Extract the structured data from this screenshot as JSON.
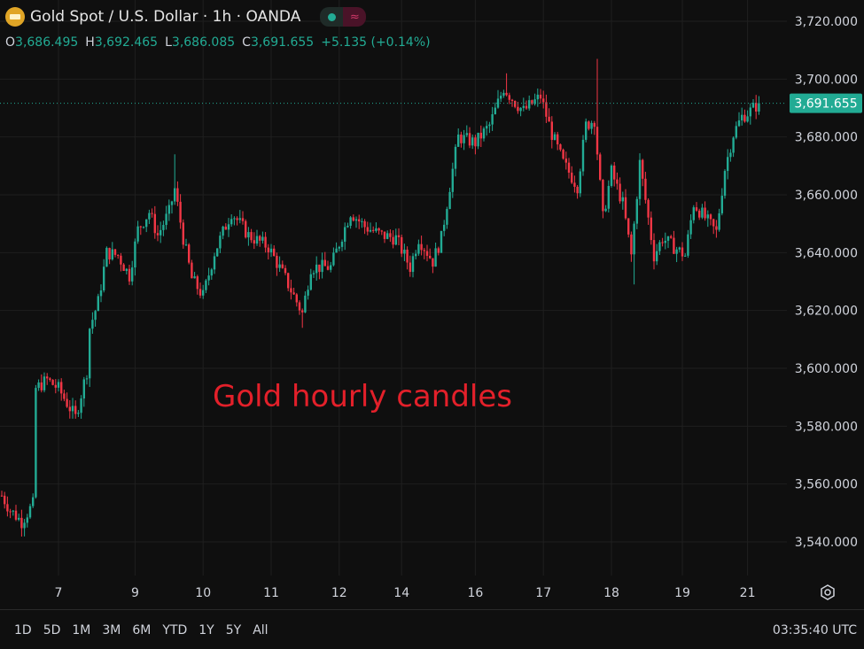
{
  "header": {
    "symbol_title": "Gold Spot / U.S. Dollar · 1h · OANDA",
    "status_icon": "market-open-dot-icon",
    "replay_icon": "wave-icon",
    "ohlc": {
      "o_label": "O",
      "o": "3,686.495",
      "h_label": "H",
      "h": "3,692.465",
      "l_label": "L",
      "l": "3,686.085",
      "c_label": "C",
      "c": "3,691.655",
      "change": "+5.135 (+0.14%)"
    }
  },
  "annotation": "Gold hourly candles",
  "colors": {
    "up": "#22ab94",
    "down": "#f23645",
    "annotation": "#e3202a",
    "background": "#0f0f0f"
  },
  "chart_data": {
    "type": "candlestick",
    "title": "Gold Spot / U.S. Dollar · 1h · OANDA",
    "ylim": [
      3530,
      3728
    ],
    "y_ticks": [
      3720,
      3700,
      3680,
      3660,
      3640,
      3620,
      3600,
      3580,
      3560,
      3540
    ],
    "y_tick_labels": [
      "3,720.000",
      "3,700.000",
      "3,680.000",
      "3,660.000",
      "3,640.000",
      "3,620.000",
      "3,600.000",
      "3,580.000",
      "3,560.000",
      "3,540.000"
    ],
    "x_range_hours": [
      0,
      278
    ],
    "x_ticks": [
      {
        "label": "7",
        "hour": 20
      },
      {
        "label": "9",
        "hour": 47
      },
      {
        "label": "10",
        "hour": 71
      },
      {
        "label": "11",
        "hour": 95
      },
      {
        "label": "12",
        "hour": 119
      },
      {
        "label": "14",
        "hour": 141
      },
      {
        "label": "16",
        "hour": 167
      },
      {
        "label": "17",
        "hour": 191
      },
      {
        "label": "18",
        "hour": 215
      },
      {
        "label": "19",
        "hour": 240
      },
      {
        "label": "21",
        "hour": 263
      }
    ],
    "last_price": 3691.655,
    "last_price_label": "3,691.655",
    "close_path_waypoints": [
      [
        0,
        3556
      ],
      [
        3,
        3551
      ],
      [
        7,
        3547
      ],
      [
        11,
        3553
      ],
      [
        12,
        3593
      ],
      [
        16,
        3596
      ],
      [
        20,
        3593
      ],
      [
        26,
        3583
      ],
      [
        30,
        3599
      ],
      [
        31,
        3614
      ],
      [
        34,
        3623
      ],
      [
        37,
        3640
      ],
      [
        41,
        3639
      ],
      [
        45,
        3632
      ],
      [
        48,
        3648
      ],
      [
        52,
        3654
      ],
      [
        55,
        3646
      ],
      [
        59,
        3654
      ],
      [
        61,
        3662
      ],
      [
        64,
        3645
      ],
      [
        67,
        3631
      ],
      [
        71,
        3625
      ],
      [
        75,
        3640
      ],
      [
        81,
        3654
      ],
      [
        87,
        3646
      ],
      [
        94,
        3642
      ],
      [
        100,
        3631
      ],
      [
        106,
        3619
      ],
      [
        109,
        3635
      ],
      [
        116,
        3635
      ],
      [
        120,
        3646
      ],
      [
        123,
        3654
      ],
      [
        128,
        3649
      ],
      [
        134,
        3646
      ],
      [
        139,
        3645
      ],
      [
        144,
        3635
      ],
      [
        147,
        3645
      ],
      [
        152,
        3637
      ],
      [
        155,
        3645
      ],
      [
        158,
        3663
      ],
      [
        161,
        3680
      ],
      [
        167,
        3678
      ],
      [
        172,
        3684
      ],
      [
        177,
        3697
      ],
      [
        181,
        3692
      ],
      [
        184,
        3689
      ],
      [
        190,
        3694
      ],
      [
        194,
        3681
      ],
      [
        198,
        3671
      ],
      [
        203,
        3663
      ],
      [
        206,
        3684
      ],
      [
        209,
        3686
      ],
      [
        212,
        3652
      ],
      [
        215,
        3668
      ],
      [
        219,
        3657
      ],
      [
        222,
        3639
      ],
      [
        225,
        3671
      ],
      [
        230,
        3639
      ],
      [
        233,
        3645
      ],
      [
        237,
        3642
      ],
      [
        241,
        3639
      ],
      [
        244,
        3657
      ],
      [
        248,
        3652
      ],
      [
        252,
        3647
      ],
      [
        255,
        3669
      ],
      [
        258,
        3681
      ],
      [
        261,
        3687
      ],
      [
        264,
        3689
      ],
      [
        267,
        3691.655
      ]
    ],
    "notable_wicks": [
      [
        61,
        3674
      ],
      [
        210,
        3707
      ],
      [
        178,
        3702
      ],
      [
        223,
        3629
      ],
      [
        106,
        3614
      ]
    ]
  },
  "toolbar": {
    "ranges": [
      "1D",
      "5D",
      "1M",
      "3M",
      "6M",
      "YTD",
      "1Y",
      "5Y",
      "All"
    ],
    "clock": "03:35:40 UTC",
    "settings_icon": "gear-icon"
  }
}
